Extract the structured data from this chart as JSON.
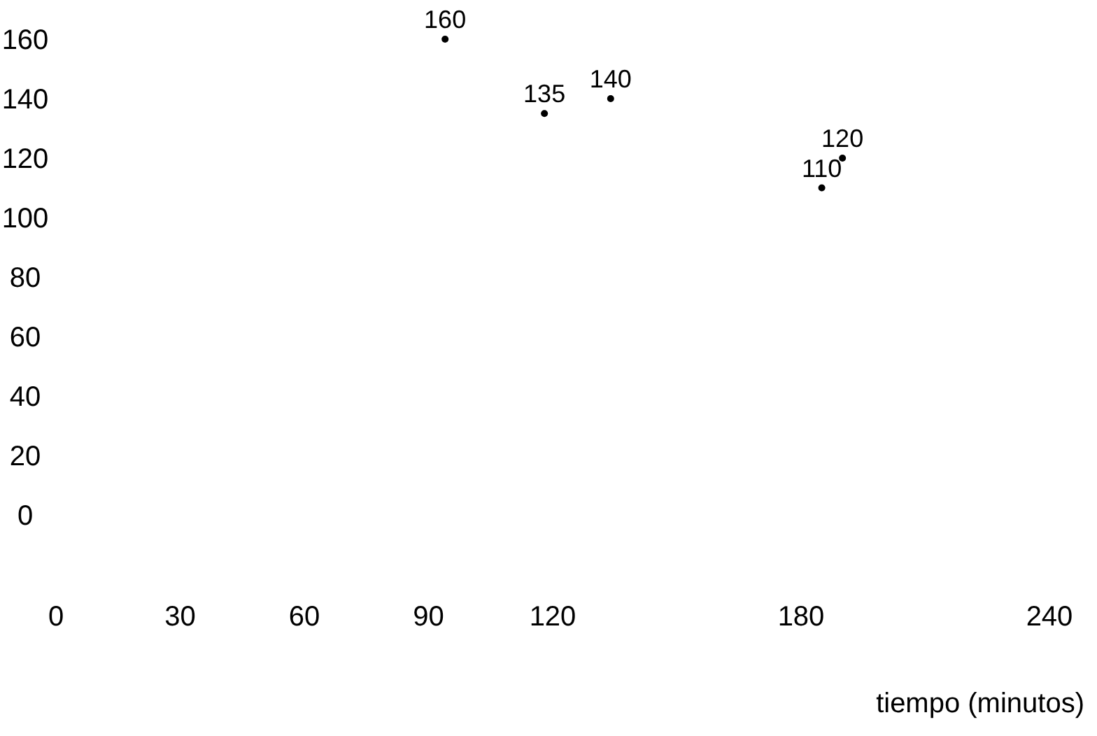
{
  "chart_data": {
    "type": "scatter",
    "xlabel": "tiempo (minutos)",
    "series": [
      {
        "color": "#000000",
        "x": [
          94,
          118,
          134,
          185,
          190
        ],
        "values": [
          160,
          135,
          140,
          110,
          120
        ]
      }
    ],
    "xlim": [
      0,
      240
    ],
    "xticks": [
      0,
      30,
      60,
      90,
      120,
      180,
      240
    ],
    "ylim": [
      0,
      160
    ],
    "yticks": [
      0,
      20,
      40,
      60,
      80,
      100,
      120,
      140,
      160
    ],
    "marker": "circle",
    "data_labels": true
  }
}
